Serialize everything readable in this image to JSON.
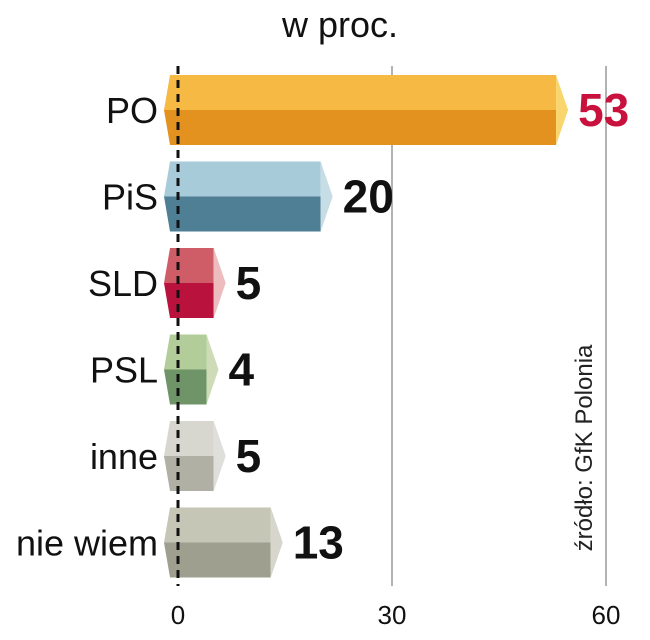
{
  "chart_data": {
    "type": "bar",
    "orientation": "horizontal",
    "title": "w proc.",
    "source": "źródło: GfK Polonia",
    "categories": [
      "PO",
      "PiS",
      "SLD",
      "PSL",
      "inne",
      "nie wiem"
    ],
    "values": [
      53,
      20,
      5,
      4,
      5,
      13
    ],
    "value_labels": [
      "53",
      "20",
      "5",
      "4",
      "5",
      "13"
    ],
    "bar_colors": [
      {
        "top": "#f5b944",
        "bottom": "#e4921f",
        "end": "#f9d56e"
      },
      {
        "top": "#a7cbd8",
        "bottom": "#4f7f95",
        "end": "#c7dde5"
      },
      {
        "top": "#cf5d68",
        "bottom": "#b9123c",
        "end": "#ecbcbf"
      },
      {
        "top": "#b2cc9a",
        "bottom": "#6f9468",
        "end": "#cddcb6"
      },
      {
        "top": "#d7d7cf",
        "bottom": "#b0b0a5",
        "end": "#dededa"
      },
      {
        "top": "#c6c6b6",
        "bottom": "#9f9f8f",
        "end": "#d6d6cc"
      }
    ],
    "highlight_color": "#c8123d",
    "label_color": "#111111",
    "xlim": [
      0,
      60
    ],
    "xticks": [
      0,
      30,
      60
    ],
    "xtick_labels": [
      "0",
      "30",
      "60"
    ],
    "grid": true,
    "legend": "none"
  }
}
